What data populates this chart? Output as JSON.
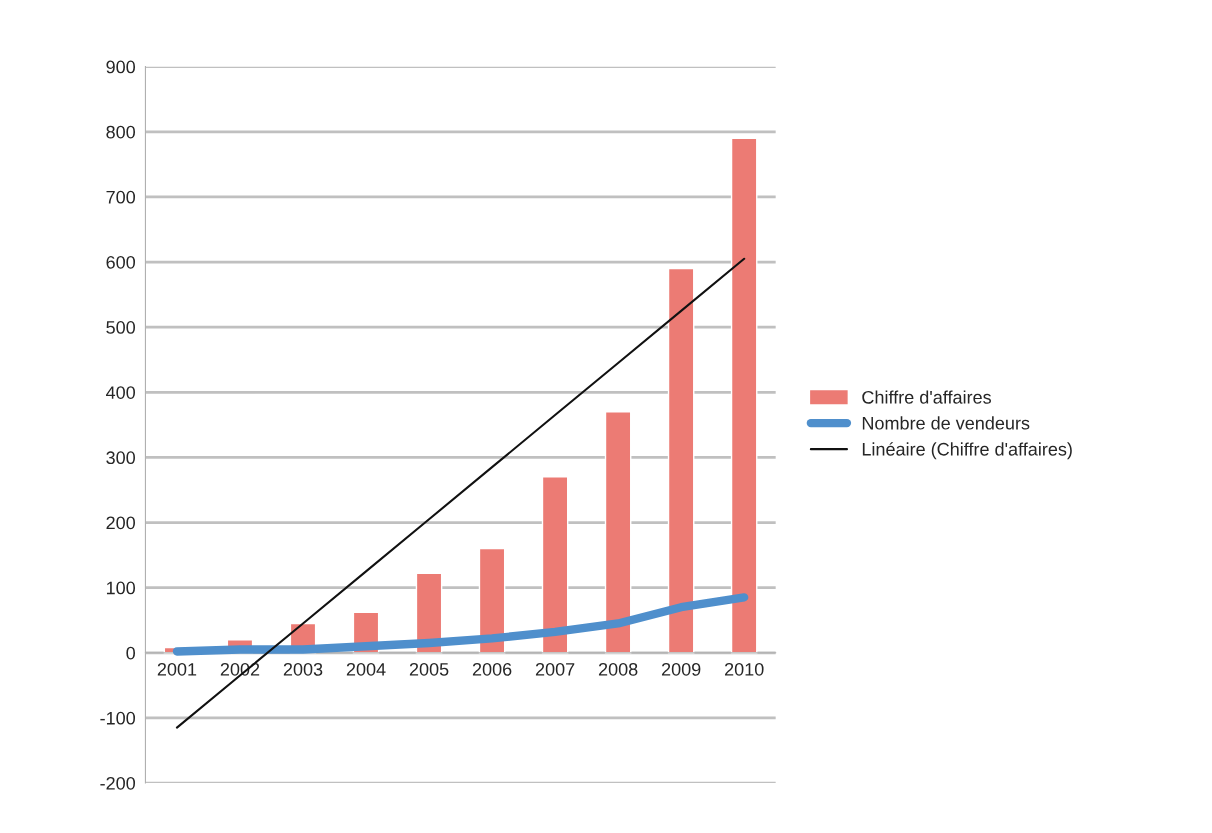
{
  "chart_data": {
    "type": "bar",
    "categories": [
      "2001",
      "2002",
      "2003",
      "2004",
      "2005",
      "2006",
      "2007",
      "2008",
      "2009",
      "2010"
    ],
    "series": [
      {
        "name": "Chiffre d'affaires",
        "color": "#ec7b74",
        "values": [
          8,
          20,
          45,
          62,
          122,
          160,
          270,
          370,
          590,
          790
        ]
      },
      {
        "name": "Nombre de vendeurs",
        "type": "line",
        "color": "#4f8fcc",
        "values": [
          2,
          5,
          5,
          10,
          15,
          22,
          32,
          45,
          70,
          85
        ]
      },
      {
        "name": "Linéaire (Chiffre d'affaires)",
        "type": "line",
        "color": "#111111",
        "values": [
          -115,
          -35,
          45,
          125,
          205,
          285,
          365,
          445,
          525,
          605
        ]
      }
    ],
    "ylim": [
      -200,
      900
    ],
    "yticks": [
      -200,
      -100,
      0,
      100,
      200,
      300,
      400,
      500,
      600,
      700,
      800,
      900
    ],
    "grid": "y",
    "legend": "right"
  }
}
